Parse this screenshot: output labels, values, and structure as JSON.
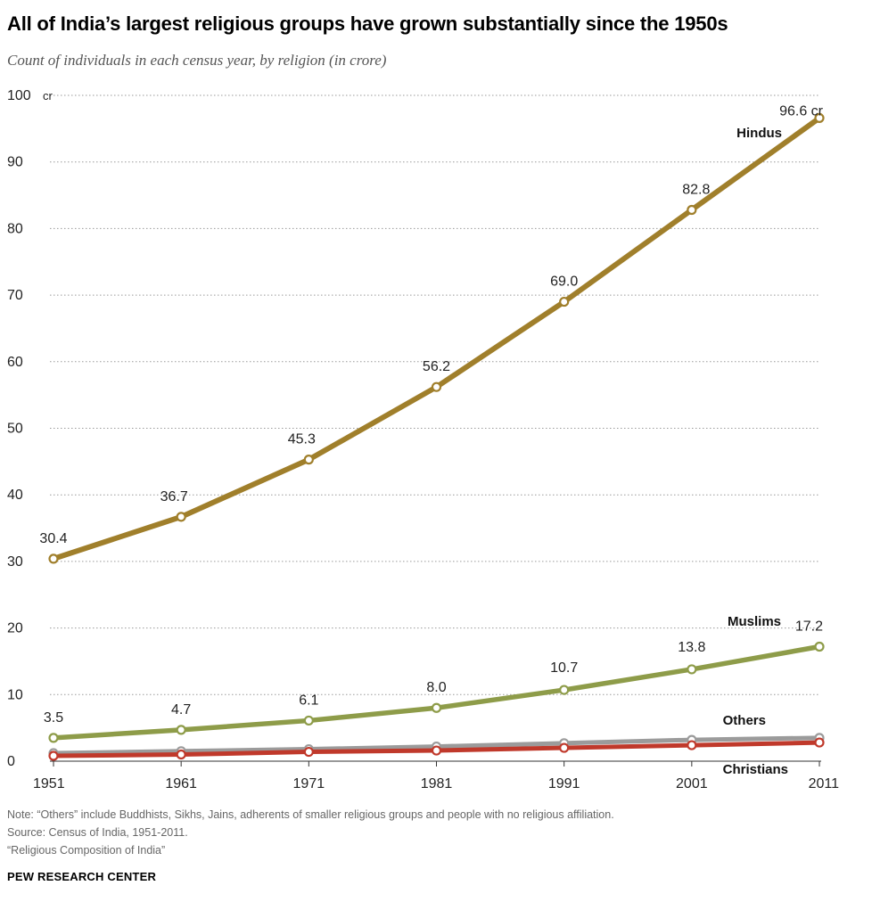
{
  "header": {
    "title": "All of India’s largest religious groups have grown substantially since the 1950s",
    "subtitle": "Count of individuals in each census year, by religion (in crore)"
  },
  "footer": {
    "note": "Note: “Others” include Buddhists, Sikhs, Jains, adherents of smaller religious groups and people with no religious affiliation.",
    "source": "Source: Census of India, 1951-2011.",
    "report": "“Religious Composition of India”",
    "brand": "PEW RESEARCH CENTER"
  },
  "chart_data": {
    "type": "line",
    "x": [
      1951,
      1961,
      1971,
      1981,
      1991,
      2001,
      2011
    ],
    "x_tick_labels": [
      "1951",
      "1961",
      "1971",
      "1981",
      "1991",
      "2001",
      "2011"
    ],
    "ylim": [
      0,
      100
    ],
    "y_ticks": [
      0,
      10,
      20,
      30,
      40,
      50,
      60,
      70,
      80,
      90,
      100
    ],
    "y_tick_labels": [
      "0",
      "10",
      "20",
      "30",
      "40",
      "50",
      "60",
      "70",
      "80",
      "90",
      "100"
    ],
    "y_unit_label": "cr",
    "grid": true,
    "grid_style": "dotted",
    "legend": "direct labels near series end",
    "series": [
      {
        "name": "Hindus",
        "color": "#a07f2b",
        "values": [
          30.4,
          36.7,
          45.3,
          56.2,
          69.0,
          82.8,
          96.6
        ],
        "data_labels": [
          "30.4",
          "36.7",
          "45.3",
          "56.2",
          "69.0",
          "82.8",
          "96.6 cr"
        ]
      },
      {
        "name": "Muslims",
        "color": "#8e9c49",
        "values": [
          3.5,
          4.7,
          6.1,
          8.0,
          10.7,
          13.8,
          17.2
        ],
        "data_labels": [
          "3.5",
          "4.7",
          "6.1",
          "8.0",
          "10.7",
          "13.8",
          "17.2"
        ]
      },
      {
        "name": "Others",
        "color": "#9b9b9b",
        "values": [
          1.2,
          1.5,
          1.8,
          2.2,
          2.7,
          3.2,
          3.5
        ],
        "data_labels": []
      },
      {
        "name": "Christians",
        "color": "#c0392b",
        "values": [
          0.8,
          1.0,
          1.4,
          1.6,
          2.0,
          2.4,
          2.8
        ],
        "data_labels": []
      }
    ]
  }
}
